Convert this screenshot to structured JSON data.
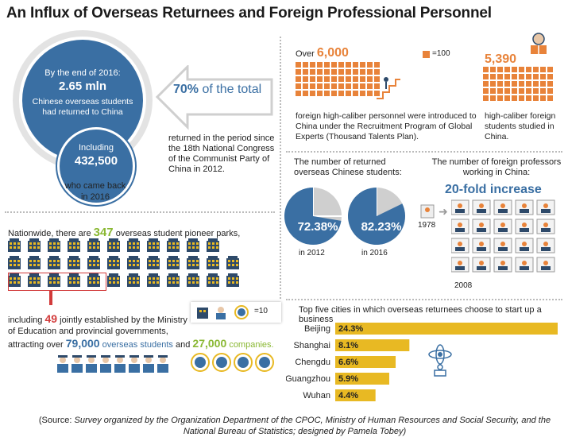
{
  "title": "An Influx of Overseas Returnees and Foreign Professional Personnel",
  "colors": {
    "blue": "#3a6fa3",
    "orange": "#e8833a",
    "green": "#8ab833",
    "bar": "#e8b923",
    "navy": "#2e4a6a"
  },
  "returnees": {
    "line1": "By the end of 2016:",
    "big": "2.65 mln",
    "line2": "Chinese overseas students",
    "line3": "had returned to China",
    "including": "Including",
    "num": "432,500",
    "came_back": "who came back",
    "year": "in 2016"
  },
  "total": {
    "pct": "70%",
    "of_total": "of the total",
    "desc": "returned in the period since the 18th National Congress of the Communist Party of China in 2012."
  },
  "talents": {
    "over": "Over",
    "num": "6,000",
    "legend": "=100",
    "desc": "foreign high-caliber personnel were introduced to China under the Recruitment Program of Global Experts (Thousand Talents Plan)."
  },
  "students": {
    "num": "5,390",
    "desc": "high-caliber foreign students studied in China."
  },
  "parks": {
    "intro": "Nationwide, there are",
    "num": "347",
    "rest": "overseas student pioneer parks,",
    "legend": "=10",
    "incl": "including",
    "num2": "49",
    "text2": "jointly established by the Ministry of Education and provincial governments,",
    "attract": "attracting over",
    "num3": "79,000",
    "t3": "overseas students",
    "and": "and",
    "num4": "27,000",
    "t4": "companies."
  },
  "pies": {
    "title": "The number of returned overseas Chinese students:",
    "p1": "72.38%",
    "y1": "in 2012",
    "p2": "82.23%",
    "y2": "in 2016",
    "v1": 72.38,
    "v2": 82.23
  },
  "professors": {
    "title": "The number of foreign professors working in China:",
    "increase": "20-fold increase",
    "y1": "1978",
    "y2": "2008"
  },
  "chart_data": {
    "type": "bar",
    "title": "Top five cities in which overseas returnees choose to start up a business",
    "categories": [
      "Beijing",
      "Shanghai",
      "Chengdu",
      "Guangzhou",
      "Wuhan"
    ],
    "values": [
      24.3,
      8.1,
      6.6,
      5.9,
      4.4
    ],
    "value_labels": [
      "24.3%",
      "8.1%",
      "6.6%",
      "5.9%",
      "4.4%"
    ]
  },
  "source": {
    "open": "(Source:",
    "text": "Survey organized by the Organization Department of the CPOC, Ministry of Human Resources and Social Security, and the National Bureau of Statistics; designed by Pamela Tobey)"
  }
}
